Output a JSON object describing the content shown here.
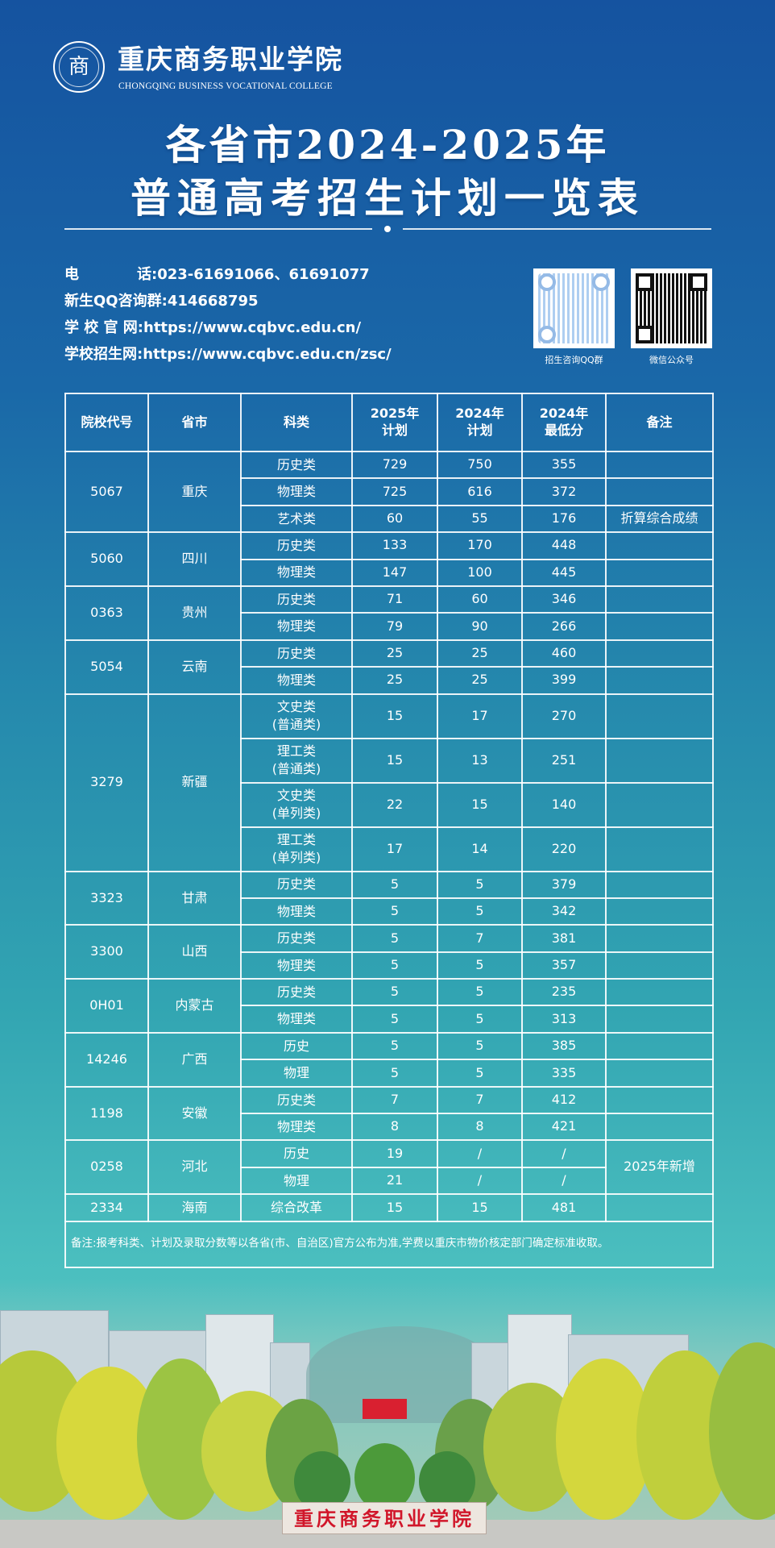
{
  "header": {
    "logo_text": "商",
    "college_name": "重庆商务职业学院",
    "college_name_en": "CHONGQING BUSINESS VOCATIONAL COLLEGE",
    "title_line1": "各省市2024-2025年",
    "title_line2": "普通高考招生计划一览表"
  },
  "contact": {
    "phone_label": "电　　　　话:",
    "phone": "023-61691066、61691077",
    "qq_label": "新生QQ咨询群:",
    "qq": "414668795",
    "website_label": "学 校 官 网:",
    "website": "https://www.cqbvc.edu.cn/",
    "admission_label": "学校招生网:",
    "admission_site": "https://www.cqbvc.edu.cn/zsc/"
  },
  "qr_codes": [
    {
      "label": "招生咨询QQ群"
    },
    {
      "label": "微信公众号"
    }
  ],
  "table": {
    "headers": [
      "院校代号",
      "省市",
      "科类",
      "2025年\n计划",
      "2024年\n计划",
      "2024年\n最低分",
      "备注"
    ],
    "groups": [
      {
        "code": "5067",
        "province": "重庆",
        "rows": [
          {
            "subject": "历史类",
            "plan2025": "729",
            "plan2024": "750",
            "min2024": "355",
            "remark": ""
          },
          {
            "subject": "物理类",
            "plan2025": "725",
            "plan2024": "616",
            "min2024": "372",
            "remark": ""
          },
          {
            "subject": "艺术类",
            "plan2025": "60",
            "plan2024": "55",
            "min2024": "176",
            "remark": "折算综合成绩"
          }
        ]
      },
      {
        "code": "5060",
        "province": "四川",
        "rows": [
          {
            "subject": "历史类",
            "plan2025": "133",
            "plan2024": "170",
            "min2024": "448",
            "remark": ""
          },
          {
            "subject": "物理类",
            "plan2025": "147",
            "plan2024": "100",
            "min2024": "445",
            "remark": ""
          }
        ]
      },
      {
        "code": "0363",
        "province": "贵州",
        "rows": [
          {
            "subject": "历史类",
            "plan2025": "71",
            "plan2024": "60",
            "min2024": "346",
            "remark": ""
          },
          {
            "subject": "物理类",
            "plan2025": "79",
            "plan2024": "90",
            "min2024": "266",
            "remark": ""
          }
        ]
      },
      {
        "code": "5054",
        "province": "云南",
        "rows": [
          {
            "subject": "历史类",
            "plan2025": "25",
            "plan2024": "25",
            "min2024": "460",
            "remark": ""
          },
          {
            "subject": "物理类",
            "plan2025": "25",
            "plan2024": "25",
            "min2024": "399",
            "remark": ""
          }
        ]
      },
      {
        "code": "3279",
        "province": "新疆",
        "rows": [
          {
            "subject": "文史类\n(普通类)",
            "plan2025": "15",
            "plan2024": "17",
            "min2024": "270",
            "remark": ""
          },
          {
            "subject": "理工类\n(普通类)",
            "plan2025": "15",
            "plan2024": "13",
            "min2024": "251",
            "remark": ""
          },
          {
            "subject": "文史类\n(单列类)",
            "plan2025": "22",
            "plan2024": "15",
            "min2024": "140",
            "remark": ""
          },
          {
            "subject": "理工类\n(单列类)",
            "plan2025": "17",
            "plan2024": "14",
            "min2024": "220",
            "remark": ""
          }
        ]
      },
      {
        "code": "3323",
        "province": "甘肃",
        "rows": [
          {
            "subject": "历史类",
            "plan2025": "5",
            "plan2024": "5",
            "min2024": "379",
            "remark": ""
          },
          {
            "subject": "物理类",
            "plan2025": "5",
            "plan2024": "5",
            "min2024": "342",
            "remark": ""
          }
        ]
      },
      {
        "code": "3300",
        "province": "山西",
        "rows": [
          {
            "subject": "历史类",
            "plan2025": "5",
            "plan2024": "7",
            "min2024": "381",
            "remark": ""
          },
          {
            "subject": "物理类",
            "plan2025": "5",
            "plan2024": "5",
            "min2024": "357",
            "remark": ""
          }
        ]
      },
      {
        "code": "0H01",
        "province": "内蒙古",
        "rows": [
          {
            "subject": "历史类",
            "plan2025": "5",
            "plan2024": "5",
            "min2024": "235",
            "remark": ""
          },
          {
            "subject": "物理类",
            "plan2025": "5",
            "plan2024": "5",
            "min2024": "313",
            "remark": ""
          }
        ]
      },
      {
        "code": "14246",
        "province": "广西",
        "rows": [
          {
            "subject": "历史",
            "plan2025": "5",
            "plan2024": "5",
            "min2024": "385",
            "remark": ""
          },
          {
            "subject": "物理",
            "plan2025": "5",
            "plan2024": "5",
            "min2024": "335",
            "remark": ""
          }
        ]
      },
      {
        "code": "1198",
        "province": "安徽",
        "rows": [
          {
            "subject": "历史类",
            "plan2025": "7",
            "plan2024": "7",
            "min2024": "412",
            "remark": ""
          },
          {
            "subject": "物理类",
            "plan2025": "8",
            "plan2024": "8",
            "min2024": "421",
            "remark": ""
          }
        ]
      },
      {
        "code": "0258",
        "province": "河北",
        "group_remark": "2025年新增",
        "rows": [
          {
            "subject": "历史",
            "plan2025": "19",
            "plan2024": "/",
            "min2024": "/"
          },
          {
            "subject": "物理",
            "plan2025": "21",
            "plan2024": "/",
            "min2024": "/"
          }
        ]
      },
      {
        "code": "2334",
        "province": "海南",
        "rows": [
          {
            "subject": "综合改革",
            "plan2025": "15",
            "plan2024": "15",
            "min2024": "481",
            "remark": ""
          }
        ]
      }
    ],
    "note": "备注:报考科类、计划及录取分数等以各省(市、自治区)官方公布为准,学费以重庆市物价核定部门确定标准收取。"
  },
  "photo": {
    "sign_text": "重庆商务职业学院"
  },
  "colors": {
    "bg_top": "#1553a0",
    "bg_bottom": "#58c6c4",
    "sign_red": "#d1162a"
  }
}
